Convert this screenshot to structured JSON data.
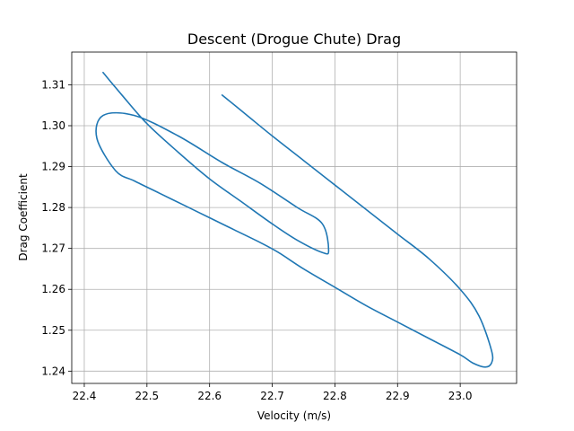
{
  "chart_data": {
    "type": "line",
    "title": "Descent (Drogue Chute) Drag",
    "xlabel": "Velocity (m/s)",
    "ylabel": "Drag Coefficient",
    "xlim": [
      22.38,
      23.09
    ],
    "ylim": [
      1.237,
      1.318
    ],
    "xticks": [
      22.4,
      22.5,
      22.6,
      22.7,
      22.8,
      22.9,
      23.0
    ],
    "yticks": [
      1.24,
      1.25,
      1.26,
      1.27,
      1.28,
      1.29,
      1.3,
      1.31
    ],
    "grid": true,
    "series": [
      {
        "color": "#1f77b4",
        "x": [
          22.62,
          22.66,
          22.7,
          22.75,
          22.8,
          22.85,
          22.9,
          22.95,
          23.0,
          23.03,
          23.05,
          23.05,
          23.04,
          23.02,
          23.0,
          22.95,
          22.9,
          22.85,
          22.8,
          22.75,
          22.71,
          22.68,
          22.64,
          22.6,
          22.56,
          22.52,
          22.48,
          22.45,
          22.42,
          22.43,
          22.48,
          22.55,
          22.62,
          22.68,
          22.74,
          22.78,
          22.79,
          22.78,
          22.74,
          22.7,
          22.65,
          22.6,
          22.55,
          22.5,
          22.46,
          22.43
        ],
        "y": [
          1.3075,
          1.3025,
          1.2975,
          1.2915,
          1.2855,
          1.2795,
          1.2735,
          1.2675,
          1.26,
          1.2535,
          1.245,
          1.242,
          1.241,
          1.242,
          1.244,
          1.248,
          1.252,
          1.256,
          1.2605,
          1.265,
          1.269,
          1.2715,
          1.2745,
          1.2775,
          1.2805,
          1.2835,
          1.2865,
          1.289,
          1.297,
          1.3025,
          1.3025,
          1.2975,
          1.291,
          1.286,
          1.28,
          1.276,
          1.2695,
          1.269,
          1.272,
          1.276,
          1.2815,
          1.287,
          1.2935,
          1.3005,
          1.3075,
          1.313
        ]
      }
    ]
  }
}
